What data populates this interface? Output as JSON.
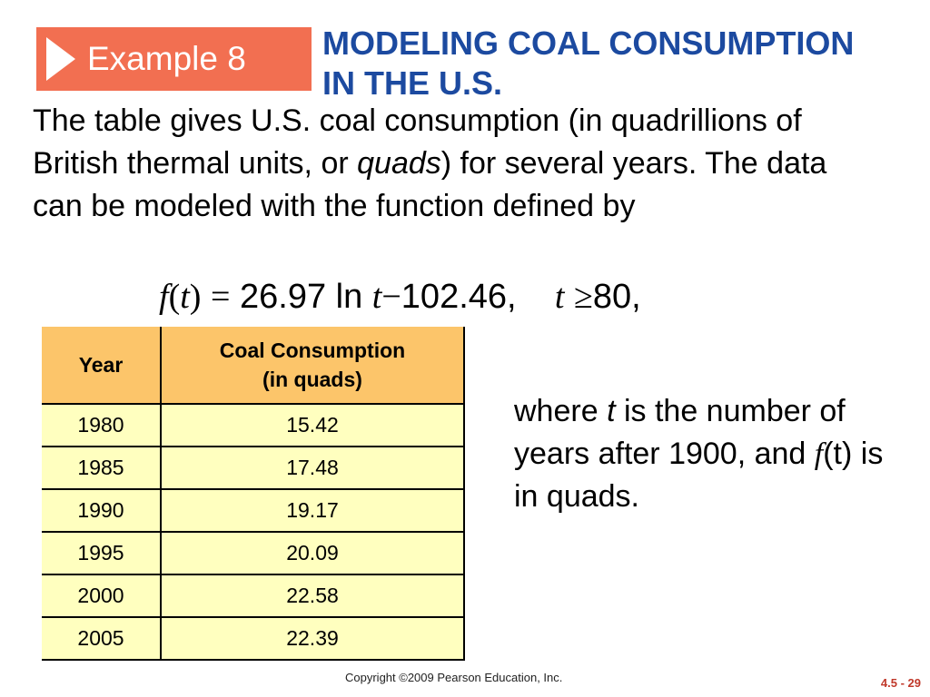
{
  "badge": {
    "label": "Example 8"
  },
  "title": {
    "line1": "MODELING COAL CONSUMPTION",
    "line2": "IN THE U.S."
  },
  "intro": {
    "before_italic": "The table gives U.S. coal consumption (in quadrillions of British thermal units, or ",
    "italic": "quads",
    "after_italic": ") for several years. The data can be modeled with the function defined by"
  },
  "formula": {
    "f": "f",
    "open_paren": "(",
    "t": "t",
    "close_paren": ")",
    "equals": "=",
    "coefficient": "26.97",
    "ln": "ln",
    "t2": "t",
    "minus": "−",
    "constant": "102.46,",
    "t3": "t",
    "geq": "≥",
    "bound": "80,"
  },
  "table": {
    "headers": [
      "Year",
      "Coal Consumption\n(in quads)"
    ],
    "header_line1": "Coal Consumption",
    "header_line2": "(in quads)",
    "rows": [
      [
        "1980",
        "15.42"
      ],
      [
        "1985",
        "17.48"
      ],
      [
        "1990",
        "19.17"
      ],
      [
        "1995",
        "20.09"
      ],
      [
        "2000",
        "22.58"
      ],
      [
        "2005",
        "22.39"
      ]
    ]
  },
  "note": {
    "where": "where ",
    "t": "t",
    "rest1": " is the number of years after 1900, and ",
    "f": "f",
    "rest2": "(t) is in quads."
  },
  "footer": {
    "copyright": "Copyright ©2009 Pearson Education, Inc.",
    "page": "4.5 - 29"
  },
  "colors": {
    "badge": "#f26f51",
    "title": "#1c4aa0",
    "table_header": "#fcc56a",
    "table_body": "#ffffbf"
  }
}
